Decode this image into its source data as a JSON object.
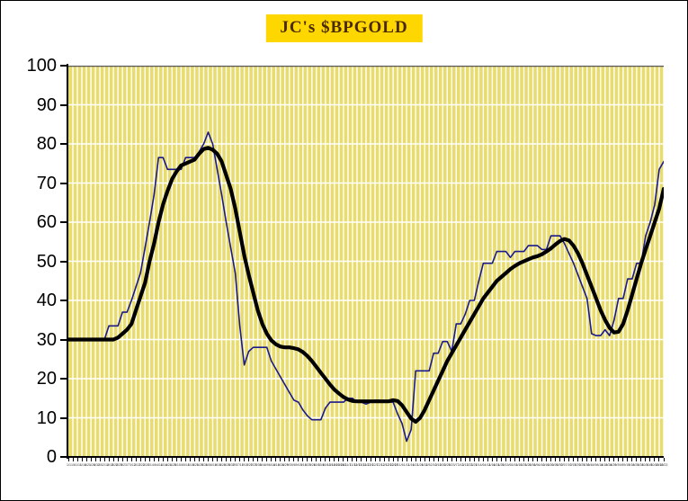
{
  "header": {
    "title": "JC's $BPGOLD",
    "title_bg": "#FFD700",
    "title_color": "#4a2a00"
  },
  "chart_data": {
    "type": "line",
    "title": "JC's $BPGOLD",
    "xlabel": "",
    "ylabel": "",
    "ylim": [
      0,
      100
    ],
    "ytick_step": 10,
    "grid": "on",
    "legend": "none",
    "plot_bg": "#e9dc6e",
    "grid_color": "#ffffff",
    "top_line_color": "#555555",
    "y_tick_labels": [
      "0",
      "10",
      "20",
      "30",
      "40",
      "50",
      "60",
      "70",
      "80",
      "90",
      "100"
    ],
    "x_labels": [
      "1/1",
      "1/6",
      "1/11",
      "1/16",
      "1/21",
      "1/26",
      "1/31",
      "2/5",
      "2/10",
      "2/15",
      "2/20",
      "2/25",
      "3/2",
      "3/7",
      "3/12",
      "3/17",
      "3/22",
      "3/27",
      "4/1",
      "4/6",
      "4/11",
      "4/16",
      "4/21",
      "4/26",
      "5/1",
      "5/6",
      "5/11",
      "5/16",
      "5/21",
      "5/26",
      "5/31",
      "6/5",
      "6/10",
      "6/15",
      "6/20",
      "6/25",
      "6/30",
      "7/5",
      "7/10",
      "7/15",
      "7/20",
      "7/25",
      "7/30",
      "8/4",
      "8/9",
      "8/14",
      "8/19",
      "8/24",
      "8/29",
      "9/3",
      "9/8",
      "9/13",
      "9/18",
      "9/23",
      "9/28",
      "10/3",
      "10/8",
      "10/13",
      "10/18",
      "10/23",
      "10/28",
      "11/2",
      "11/7",
      "11/12",
      "11/17",
      "11/22",
      "11/27",
      "12/2",
      "12/7",
      "12/12",
      "12/17",
      "12/22",
      "12/27",
      "1/1",
      "1/6",
      "1/11",
      "1/16",
      "1/21",
      "1/26",
      "1/31",
      "2/5",
      "2/10",
      "2/15",
      "2/20",
      "2/25",
      "3/2",
      "3/7",
      "3/12",
      "3/17",
      "3/22",
      "3/27",
      "4/1",
      "4/6",
      "4/11",
      "4/16",
      "4/21",
      "4/26",
      "5/1",
      "5/6",
      "5/11",
      "5/16",
      "5/21",
      "5/26",
      "5/31",
      "6/5",
      "6/10",
      "6/15",
      "6/20",
      "6/25",
      "6/30",
      "7/5",
      "7/10",
      "7/15",
      "7/20",
      "7/25",
      "7/30",
      "8/4",
      "8/9",
      "8/14",
      "8/19",
      "8/24",
      "8/29",
      "9/3",
      "9/8",
      "9/13",
      "9/18",
      "9/23",
      "9/28",
      "10/3",
      "10/8",
      "10/13",
      "10/18",
      "10/23"
    ],
    "series": [
      {
        "name": "thin navy line (bullish percent index)",
        "color": "#1a1a8c",
        "width": 1.6,
        "values": [
          30,
          30,
          30,
          30,
          30,
          30,
          30,
          30,
          30,
          33.5,
          33.5,
          33.5,
          37,
          37,
          40,
          43.5,
          47,
          53.5,
          60,
          67,
          76.5,
          76.5,
          73.5,
          73.5,
          73.5,
          73.5,
          76.5,
          76.5,
          76.5,
          78,
          80,
          83,
          80,
          73.5,
          67,
          60,
          53.5,
          47,
          33.5,
          23.5,
          27,
          28,
          28,
          28,
          28,
          24.5,
          22.5,
          20.5,
          18.5,
          16.5,
          14.5,
          14,
          12,
          10.5,
          9.5,
          9.5,
          9.5,
          12.5,
          14,
          14,
          14,
          14,
          15,
          15,
          14,
          14,
          13.5,
          14,
          14.5,
          14.5,
          14,
          14,
          14,
          11,
          8.5,
          4,
          7,
          22,
          22,
          22,
          22,
          26.5,
          26.5,
          29.5,
          29.5,
          27,
          34,
          34,
          36.5,
          40,
          40,
          45,
          49.5,
          49.5,
          49.5,
          52.5,
          52.5,
          52.5,
          51,
          52.5,
          52.5,
          52.5,
          54,
          54,
          54,
          53,
          53,
          56.5,
          56.5,
          56.5,
          54.5,
          52,
          49.5,
          46.5,
          43.5,
          40.5,
          31.5,
          31,
          31,
          32.5,
          31,
          35,
          40.5,
          40.5,
          45.5,
          45.5,
          49.5,
          49.5,
          56.5,
          60,
          64.5,
          73.5,
          75.5
        ]
      },
      {
        "name": "thick black line (smoothed average)",
        "color": "#000000",
        "width": 4.2,
        "values": [
          30,
          30,
          30,
          30,
          30,
          30,
          30,
          30,
          30,
          30,
          30,
          30.5,
          31.5,
          32.5,
          34,
          37.5,
          41,
          44.5,
          50,
          54.5,
          60,
          64.5,
          68,
          71,
          73,
          74.5,
          75,
          75.5,
          76,
          77.5,
          78.7,
          79,
          78.5,
          77.5,
          75.5,
          72,
          68.5,
          63.5,
          57.5,
          51.5,
          46.5,
          42,
          37.5,
          34,
          31.5,
          29.8,
          28.8,
          28.2,
          28,
          28,
          27.8,
          27.5,
          26.8,
          25.8,
          24.5,
          23,
          21.5,
          20,
          18.5,
          17.2,
          16.2,
          15.3,
          14.7,
          14.3,
          14.2,
          14.2,
          14.2,
          14.2,
          14.2,
          14.2,
          14.2,
          14.2,
          14.5,
          14.3,
          13.2,
          11.5,
          9.8,
          9,
          10,
          12,
          14.5,
          17,
          19.5,
          22,
          24.5,
          26.5,
          28.5,
          30.5,
          32.5,
          34.5,
          36.5,
          38.5,
          40.5,
          42,
          43.5,
          45,
          46,
          47,
          48,
          48.8,
          49.5,
          50,
          50.5,
          51,
          51.3,
          51.8,
          52.5,
          53.3,
          54.3,
          55.2,
          55.7,
          55.3,
          54,
          52,
          49.5,
          46.5,
          43.5,
          40.5,
          37.5,
          35,
          33,
          31.8,
          32,
          34,
          37.5,
          41.5,
          45.5,
          49.5,
          53,
          56.5,
          60,
          63.5,
          68.5
        ]
      }
    ]
  }
}
